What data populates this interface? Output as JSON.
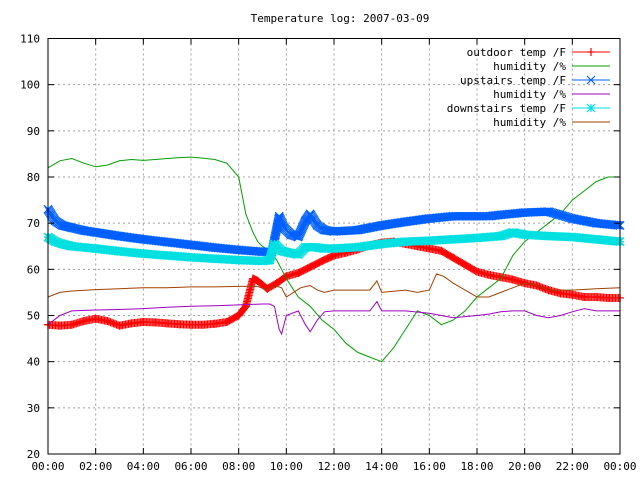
{
  "chart_data": {
    "type": "line",
    "title": "Temperature log: 2007-03-09",
    "xlabel": "",
    "ylabel": "",
    "xlim": [
      "00:00",
      "24:00"
    ],
    "ylim": [
      20,
      110
    ],
    "xticks": [
      "00:00",
      "02:00",
      "04:00",
      "06:00",
      "08:00",
      "10:00",
      "12:00",
      "14:00",
      "16:00",
      "18:00",
      "20:00",
      "22:00",
      "00:00"
    ],
    "yticks": [
      20,
      30,
      40,
      50,
      60,
      70,
      80,
      90,
      100,
      110
    ],
    "grid": true,
    "legend_position": "top-right",
    "series": [
      {
        "name": "outdoor temp /F",
        "color": "#ff0000",
        "marker": "plus",
        "x": [
          0,
          0.5,
          1,
          1.5,
          2,
          2.5,
          3,
          3.5,
          4,
          4.5,
          5,
          5.5,
          6,
          6.5,
          7,
          7.5,
          8,
          8.3,
          8.6,
          8.8,
          9.2,
          9.6,
          10,
          10.5,
          11,
          11.5,
          12,
          12.5,
          13,
          13.5,
          14,
          14.5,
          15,
          15.5,
          16,
          16.5,
          17,
          17.5,
          18,
          18.5,
          19,
          19.5,
          20,
          20.5,
          21,
          21.5,
          22,
          22.5,
          23,
          23.5,
          24
        ],
        "y": [
          48,
          47.8,
          48,
          48.8,
          49.3,
          48.8,
          47.8,
          48.3,
          48.6,
          48.5,
          48.3,
          48.1,
          48,
          48,
          48.2,
          48.6,
          50,
          52,
          58,
          57.5,
          55.8,
          57,
          58.5,
          59.2,
          60.5,
          61.8,
          63,
          63.6,
          64.3,
          65.2,
          65.8,
          66,
          65.5,
          65,
          64.5,
          64,
          62.5,
          61,
          59.5,
          58.8,
          58.3,
          57.8,
          57,
          56.5,
          55.5,
          54.8,
          54.5,
          54,
          54,
          53.8,
          53.8
        ]
      },
      {
        "name": "humidity /%",
        "color": "#00a000",
        "marker": "none",
        "x": [
          0,
          0.5,
          1,
          1.5,
          2,
          2.5,
          3,
          3.5,
          4,
          4.5,
          5,
          5.5,
          6,
          6.5,
          7,
          7.5,
          8,
          8.3,
          8.6,
          8.8,
          9,
          9.3,
          9.6,
          10,
          10.5,
          11,
          11.5,
          12,
          12.5,
          13,
          13.5,
          14,
          14.5,
          15,
          15.5,
          16,
          16.5,
          17,
          17.5,
          18,
          18.5,
          19,
          19.5,
          20,
          20.5,
          21,
          21.5,
          22,
          22.5,
          23,
          23.5,
          24
        ],
        "y": [
          82,
          83.5,
          84,
          83,
          82.2,
          82.6,
          83.5,
          83.8,
          83.6,
          83.8,
          84,
          84.2,
          84.3,
          84.1,
          83.8,
          83,
          80,
          72,
          68,
          66,
          65,
          64,
          62,
          58,
          54,
          52,
          49,
          47,
          44,
          42,
          41,
          40,
          43,
          47,
          51,
          50,
          48,
          49,
          51,
          54,
          56,
          58,
          63,
          66,
          68,
          70,
          72,
          75,
          77,
          79,
          80,
          80
        ]
      },
      {
        "name": "upstairs temp /F",
        "color": "#0060ff",
        "marker": "cross",
        "x": [
          0,
          0.3,
          0.6,
          1,
          1.5,
          2,
          3,
          4,
          5,
          6,
          7,
          8,
          9,
          9.4,
          9.7,
          9.9,
          10.2,
          10.5,
          10.8,
          11,
          11.3,
          11.6,
          12,
          13,
          14,
          15,
          16,
          17,
          18,
          18.5,
          19,
          20,
          21,
          22,
          23,
          24
        ],
        "y": [
          73,
          70.5,
          69.5,
          69,
          68.4,
          68,
          67.2,
          66.5,
          65.9,
          65.3,
          64.7,
          64.2,
          63.8,
          63.8,
          71.5,
          69,
          67.5,
          67,
          70.5,
          72,
          69.5,
          68.5,
          68.2,
          68.5,
          69.5,
          70.3,
          71,
          71.5,
          71.5,
          71.5,
          71.8,
          72.3,
          72.5,
          71,
          70,
          69.5
        ]
      },
      {
        "name": "humidity /%",
        "color": "#a000c0",
        "marker": "none",
        "x": [
          0,
          0.5,
          1,
          2,
          3,
          4,
          5,
          6,
          7,
          8,
          9,
          9.3,
          9.5,
          9.7,
          9.8,
          10,
          10.5,
          10.8,
          11,
          11.3,
          11.6,
          12,
          13,
          13.5,
          13.8,
          14,
          15,
          16,
          17,
          18,
          18.5,
          19,
          19.5,
          20,
          20.5,
          21,
          21.5,
          22,
          22.5,
          23,
          24
        ],
        "y": [
          48,
          50,
          51,
          51.2,
          51.3,
          51.5,
          51.8,
          52,
          52.1,
          52.3,
          52.5,
          52.5,
          52,
          47,
          46,
          50,
          51,
          48,
          46.5,
          49,
          50.8,
          51,
          51,
          51,
          53,
          51,
          51,
          50.5,
          49.5,
          50,
          50.3,
          50.8,
          51,
          51,
          50,
          49.5,
          50,
          50.8,
          51.5,
          51,
          51
        ]
      },
      {
        "name": "downstairs temp /F",
        "color": "#00e0e0",
        "marker": "star",
        "x": [
          0,
          0.3,
          0.6,
          1,
          2,
          3,
          4,
          5,
          6,
          7,
          8,
          9,
          9.3,
          9.5,
          9.8,
          10.2,
          10.5,
          10.8,
          11.2,
          11.6,
          12,
          13,
          14,
          15,
          16,
          17,
          18,
          19,
          19.5,
          20,
          21,
          22,
          23,
          24
        ],
        "y": [
          67,
          66,
          65.5,
          65,
          64.5,
          63.9,
          63.4,
          63,
          62.6,
          62.3,
          62,
          61.8,
          62,
          65.5,
          64,
          63.5,
          63.2,
          64.8,
          64.8,
          64.5,
          64.5,
          64.8,
          65.5,
          66,
          66.2,
          66.5,
          66.8,
          67.2,
          68,
          67.5,
          67.2,
          67,
          66.5,
          66
        ]
      },
      {
        "name": "humidity /%",
        "color": "#a04000",
        "marker": "none",
        "x": [
          0,
          0.5,
          1,
          2,
          3,
          4,
          5,
          6,
          7,
          8,
          8.8,
          9.2,
          9.5,
          9.8,
          10,
          10.3,
          10.6,
          11,
          11.3,
          11.6,
          12,
          13,
          13.5,
          13.8,
          14,
          15,
          15.5,
          16,
          16.3,
          16.6,
          17,
          17.5,
          18,
          18.5,
          19,
          19.5,
          20,
          20.5,
          21,
          22,
          23,
          24
        ],
        "y": [
          54,
          55,
          55.3,
          55.6,
          55.8,
          56,
          56,
          56.2,
          56.2,
          56.3,
          56.3,
          55.5,
          56.5,
          56,
          54,
          55,
          56,
          56.5,
          55.5,
          55,
          55.5,
          55.5,
          55.5,
          57.5,
          55,
          55.5,
          55,
          55.5,
          59,
          58.5,
          57,
          55.5,
          54,
          54,
          55,
          56,
          57,
          56.5,
          55.5,
          55.5,
          55.8,
          56
        ]
      }
    ]
  }
}
